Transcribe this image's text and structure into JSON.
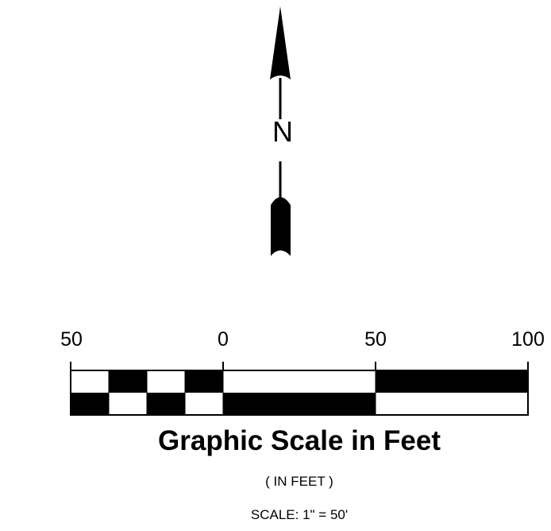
{
  "north_arrow": {
    "letter": "N"
  },
  "scale": {
    "tick_labels": [
      "50",
      "0",
      "50",
      "100"
    ],
    "title": "Graphic Scale in Feet",
    "units": "( IN FEET )",
    "ratio": "SCALE: 1\" = 50'"
  },
  "colors": {
    "ink": "#000000",
    "paper": "#ffffff"
  }
}
